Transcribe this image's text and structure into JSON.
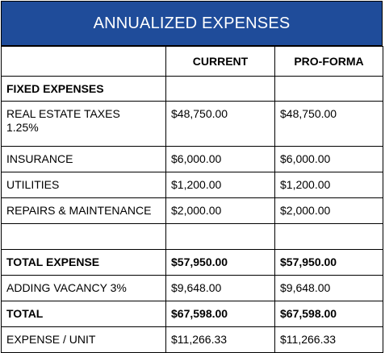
{
  "title": "ANNUALIZED EXPENSES",
  "columns": {
    "label": "",
    "current": "CURRENT",
    "proforma": "PRO-FORMA"
  },
  "section_heading": "FIXED EXPENSES",
  "rows": [
    {
      "label": "REAL ESTATE TAXES",
      "label_line2": "1.25%",
      "current": "$48,750.00",
      "proforma": "$48,750.00"
    },
    {
      "label": "INSURANCE",
      "current": "$6,000.00",
      "proforma": "$6,000.00"
    },
    {
      "label": "UTILITIES",
      "current": "$1,200.00",
      "proforma": "$1,200.00"
    },
    {
      "label": "REPAIRS & MAINTENANCE",
      "current": "$2,000.00",
      "proforma": "$2,000.00"
    }
  ],
  "total_expense": {
    "label": "TOTAL EXPENSE",
    "current": "$57,950.00",
    "proforma": "$57,950.00"
  },
  "vacancy": {
    "label": "ADDING VACANCY 3%",
    "current": "$9,648.00",
    "proforma": "$9,648.00"
  },
  "total": {
    "label": "TOTAL",
    "current": "$67,598.00",
    "proforma": "$67,598.00"
  },
  "per_unit": {
    "label": "EXPENSE / UNIT",
    "current": "$11,266.33",
    "proforma": "$11,266.33"
  }
}
